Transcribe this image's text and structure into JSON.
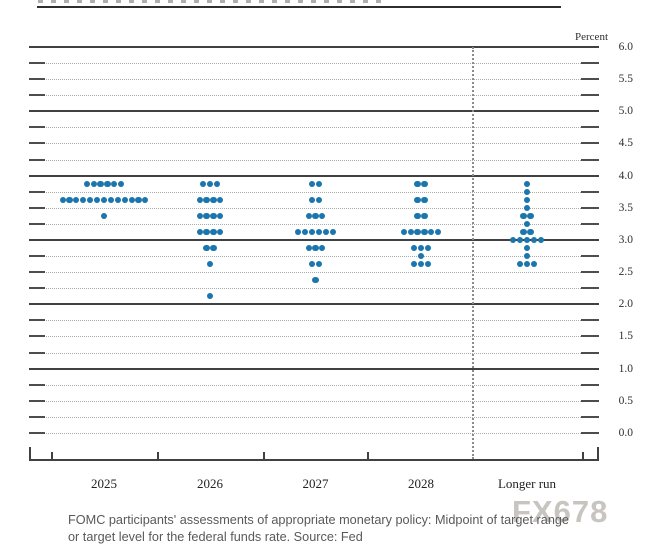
{
  "header": {
    "note": ""
  },
  "caption": {
    "line1": "FOMC participants' assessments of appropriate monetary policy: Midpoint of target range",
    "line2": "or target level for the federal funds rate. Source: Fed"
  },
  "watermark": {
    "text": "FX678"
  },
  "chart_data": {
    "type": "scatter",
    "variant": "fomc-dot-plot",
    "ylabel": "Percent",
    "ylim": [
      0.0,
      6.0
    ],
    "grid_interval": 0.25,
    "label_interval": 0.5,
    "solid_gridlines": [
      6.0,
      5.0,
      4.0,
      3.0,
      2.0,
      1.0
    ],
    "ytick_labels": [
      "6.0",
      "5.5",
      "5.0",
      "4.5",
      "4.0",
      "3.5",
      "3.0",
      "2.5",
      "2.0",
      "1.5",
      "1.0",
      "0.5",
      "0.0"
    ],
    "legend_position": "none",
    "grid": "dotted-quarters",
    "dot_color": "#1b76ad",
    "categories": [
      "2025",
      "2026",
      "2027",
      "2028",
      "Longer run"
    ],
    "series": [
      {
        "category": "2025",
        "dots": [
          {
            "rate": 3.875,
            "count": 6
          },
          {
            "rate": 3.625,
            "count": 13
          },
          {
            "rate": 3.375,
            "count": 1
          }
        ]
      },
      {
        "category": "2026",
        "dots": [
          {
            "rate": 3.875,
            "count": 3
          },
          {
            "rate": 3.625,
            "count": 4
          },
          {
            "rate": 3.375,
            "count": 4
          },
          {
            "rate": 3.125,
            "count": 4
          },
          {
            "rate": 2.875,
            "count": 2
          },
          {
            "rate": 2.625,
            "count": 1
          },
          {
            "rate": 2.125,
            "count": 1
          }
        ]
      },
      {
        "category": "2027",
        "dots": [
          {
            "rate": 3.875,
            "count": 2
          },
          {
            "rate": 3.625,
            "count": 2
          },
          {
            "rate": 3.375,
            "count": 3
          },
          {
            "rate": 3.125,
            "count": 6
          },
          {
            "rate": 2.875,
            "count": 3
          },
          {
            "rate": 2.625,
            "count": 2
          },
          {
            "rate": 2.375,
            "count": 1
          }
        ]
      },
      {
        "category": "2028",
        "dots": [
          {
            "rate": 3.875,
            "count": 2
          },
          {
            "rate": 3.625,
            "count": 2
          },
          {
            "rate": 3.375,
            "count": 2
          },
          {
            "rate": 3.125,
            "count": 6
          },
          {
            "rate": 2.875,
            "count": 3
          },
          {
            "rate": 2.75,
            "count": 1
          },
          {
            "rate": 2.625,
            "count": 3
          }
        ]
      },
      {
        "category": "Longer run",
        "dots": [
          {
            "rate": 3.875,
            "count": 1
          },
          {
            "rate": 3.75,
            "count": 1
          },
          {
            "rate": 3.625,
            "count": 1
          },
          {
            "rate": 3.5,
            "count": 1
          },
          {
            "rate": 3.375,
            "count": 2
          },
          {
            "rate": 3.25,
            "count": 1
          },
          {
            "rate": 3.125,
            "count": 2
          },
          {
            "rate": 3.0,
            "count": 5
          },
          {
            "rate": 2.875,
            "count": 1
          },
          {
            "rate": 2.75,
            "count": 1
          },
          {
            "rate": 2.625,
            "count": 3
          }
        ]
      }
    ]
  }
}
